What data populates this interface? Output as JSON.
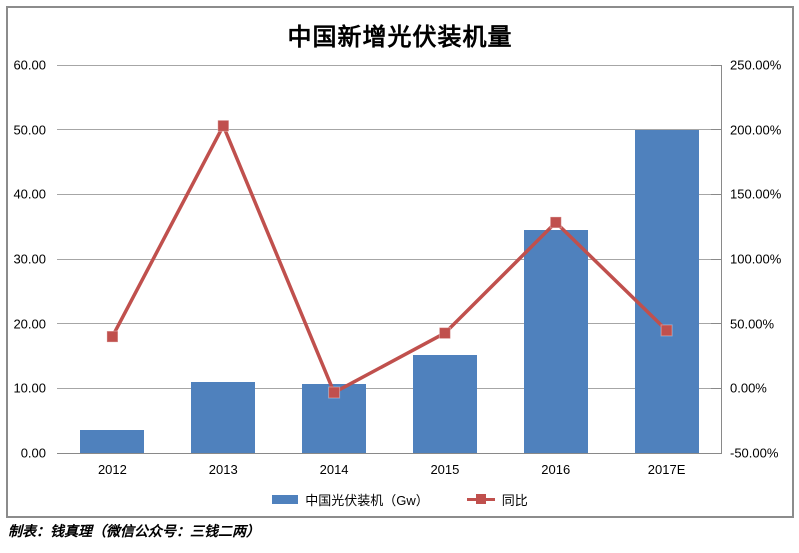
{
  "chart_data": {
    "type": "combo",
    "title": "中国新增光伏装机量",
    "categories": [
      "2012",
      "2013",
      "2014",
      "2015",
      "2016",
      "2017E"
    ],
    "series": [
      {
        "name": "中国光伏装机（Gw）",
        "type": "bar",
        "axis": "left",
        "color": "#4F81BD",
        "values": [
          3.6,
          10.95,
          10.6,
          15.13,
          34.54,
          50.0
        ]
      },
      {
        "name": "同比",
        "type": "line",
        "axis": "right",
        "color": "#C0504D",
        "marker": "square",
        "values": [
          40.0,
          203.0,
          -3.2,
          42.7,
          128.3,
          44.8
        ]
      }
    ],
    "left_axis": {
      "min": 0,
      "max": 60,
      "step": 10,
      "tick_labels": [
        "60.00",
        "50.00",
        "40.00",
        "30.00",
        "20.00",
        "10.00",
        "0.00"
      ]
    },
    "right_axis": {
      "min": -50,
      "max": 250,
      "step": 50,
      "tick_labels": [
        "250.00%",
        "200.00%",
        "150.00%",
        "100.00%",
        "50.00%",
        "0.00%",
        "-50.00%"
      ]
    },
    "grid": true,
    "legend_position": "bottom"
  },
  "footer": {
    "credit": "制表：钱真理（微信公众号：三钱二两）"
  },
  "colors": {
    "bar": "#4F81BD",
    "line": "#C0504D",
    "gridline": "#A6A6A6",
    "axis": "#898989",
    "frame_border": "#8C8C8C",
    "text": "#000000"
  }
}
